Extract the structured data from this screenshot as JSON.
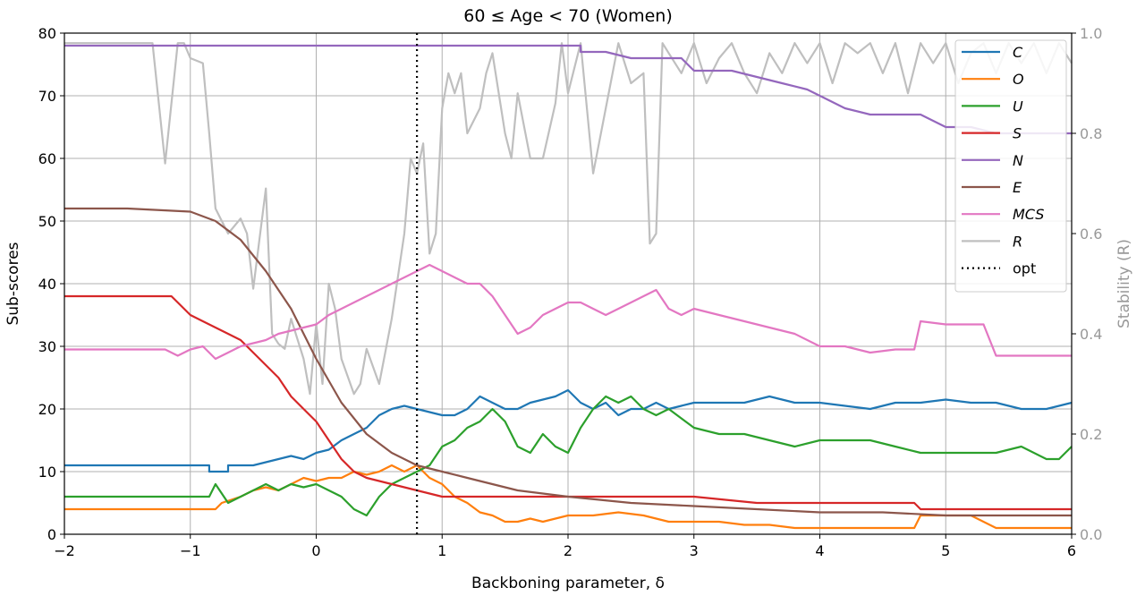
{
  "chart_data": {
    "type": "line",
    "title": "60 ≤ Age < 70 (Women)",
    "xlabel": "Backboning parameter, δ",
    "ylabel": "Sub-scores",
    "ylabel_right": "Stability (R)",
    "xlim": [
      -2,
      6
    ],
    "ylim": [
      0,
      80
    ],
    "ylim_right": [
      0,
      1.0
    ],
    "x_ticks": [
      -2,
      -1,
      0,
      1,
      2,
      3,
      4,
      5,
      6
    ],
    "x_tick_labels": [
      "−2",
      "−1",
      "0",
      "1",
      "2",
      "3",
      "4",
      "5",
      "6"
    ],
    "y_ticks": [
      0,
      10,
      20,
      30,
      40,
      50,
      60,
      70,
      80
    ],
    "y_tick_labels": [
      "0",
      "10",
      "20",
      "30",
      "40",
      "50",
      "60",
      "70",
      "80"
    ],
    "y_right_ticks": [
      0,
      0.2,
      0.4,
      0.6,
      0.8,
      1.0
    ],
    "y_right_tick_labels": [
      "0.0",
      "0.2",
      "0.4",
      "0.6",
      "0.8",
      "1.0"
    ],
    "grid": true,
    "legend_position": "top-right",
    "vline": {
      "name": "opt",
      "x": 0.8,
      "color": "#000000",
      "style": "dotted"
    },
    "series": [
      {
        "name": "C",
        "color": "#1f77b4",
        "axis": "left",
        "x": [
          -2,
          -0.85,
          -0.85,
          -0.7,
          -0.7,
          -0.5,
          -0.4,
          -0.3,
          -0.2,
          -0.1,
          0,
          0.1,
          0.2,
          0.3,
          0.4,
          0.5,
          0.6,
          0.7,
          0.8,
          0.9,
          1.0,
          1.1,
          1.2,
          1.3,
          1.4,
          1.5,
          1.6,
          1.7,
          1.8,
          1.9,
          2.0,
          2.1,
          2.2,
          2.3,
          2.4,
          2.5,
          2.6,
          2.7,
          2.8,
          2.9,
          3.0,
          3.2,
          3.4,
          3.6,
          3.8,
          4.0,
          4.2,
          4.4,
          4.6,
          4.8,
          5.0,
          5.2,
          5.4,
          5.6,
          5.8,
          6.0
        ],
        "y": [
          11,
          11,
          10,
          10,
          11,
          11,
          11.5,
          12,
          12.5,
          12,
          13,
          13.5,
          15,
          16,
          17,
          19,
          20,
          20.5,
          20,
          19.5,
          19,
          19,
          20,
          22,
          21,
          20,
          20,
          21,
          21.5,
          22,
          23,
          21,
          20,
          21,
          19,
          20,
          20,
          21,
          20,
          20.5,
          21,
          21,
          21,
          22,
          21,
          21,
          20.5,
          20,
          21,
          21,
          21.5,
          21,
          21,
          20,
          20,
          21
        ]
      },
      {
        "name": "O",
        "color": "#ff7f0e",
        "axis": "left",
        "x": [
          -2,
          -0.8,
          -0.75,
          -0.6,
          -0.5,
          -0.4,
          -0.3,
          -0.2,
          -0.1,
          0,
          0.1,
          0.2,
          0.3,
          0.4,
          0.5,
          0.6,
          0.7,
          0.8,
          0.9,
          1.0,
          1.1,
          1.2,
          1.3,
          1.4,
          1.5,
          1.6,
          1.7,
          1.8,
          1.9,
          2.0,
          2.2,
          2.4,
          2.6,
          2.8,
          3.0,
          3.2,
          3.4,
          3.6,
          3.8,
          4.0,
          4.2,
          4.4,
          4.6,
          4.75,
          4.8,
          5.0,
          5.2,
          5.4,
          5.6,
          5.8,
          6.0
        ],
        "y": [
          4,
          4,
          5,
          6,
          7,
          7.5,
          7,
          8,
          9,
          8.5,
          9,
          9,
          10,
          9.5,
          10,
          11,
          10,
          11,
          9,
          8,
          6,
          5,
          3.5,
          3,
          2,
          2,
          2.5,
          2,
          2.5,
          3,
          3,
          3.5,
          3,
          2,
          2,
          2,
          1.5,
          1.5,
          1,
          1,
          1,
          1,
          1,
          1,
          3,
          3,
          3,
          1,
          1,
          1,
          1
        ]
      },
      {
        "name": "U",
        "color": "#2ca02c",
        "axis": "left",
        "x": [
          -2,
          -0.85,
          -0.8,
          -0.7,
          -0.6,
          -0.5,
          -0.4,
          -0.3,
          -0.2,
          -0.1,
          0,
          0.1,
          0.2,
          0.3,
          0.4,
          0.5,
          0.6,
          0.7,
          0.8,
          0.9,
          1.0,
          1.1,
          1.2,
          1.3,
          1.4,
          1.5,
          1.6,
          1.7,
          1.8,
          1.9,
          2.0,
          2.1,
          2.2,
          2.3,
          2.4,
          2.5,
          2.6,
          2.7,
          2.8,
          3.0,
          3.2,
          3.4,
          3.6,
          3.8,
          4.0,
          4.2,
          4.4,
          4.6,
          4.8,
          5.0,
          5.2,
          5.4,
          5.6,
          5.8,
          5.9,
          6.0
        ],
        "y": [
          6,
          6,
          8,
          5,
          6,
          7,
          8,
          7,
          8,
          7.5,
          8,
          7,
          6,
          4,
          3,
          6,
          8,
          9,
          10,
          11,
          14,
          15,
          17,
          18,
          20,
          18,
          14,
          13,
          16,
          14,
          13,
          17,
          20,
          22,
          21,
          22,
          20,
          19,
          20,
          17,
          16,
          16,
          15,
          14,
          15,
          15,
          15,
          14,
          13,
          13,
          13,
          13,
          14,
          12,
          12,
          14
        ]
      },
      {
        "name": "S",
        "color": "#d62728",
        "axis": "left",
        "x": [
          -2,
          -1.15,
          -1.1,
          -1.0,
          -0.9,
          -0.8,
          -0.7,
          -0.6,
          -0.5,
          -0.4,
          -0.3,
          -0.2,
          -0.1,
          0,
          0.1,
          0.2,
          0.3,
          0.4,
          0.5,
          0.6,
          0.7,
          0.8,
          0.9,
          1.0,
          1.5,
          2.0,
          2.5,
          3.0,
          3.5,
          4.0,
          4.5,
          4.75,
          4.8,
          5.0,
          5.5,
          6.0
        ],
        "y": [
          38,
          38,
          37,
          35,
          34,
          33,
          32,
          31,
          29,
          27,
          25,
          22,
          20,
          18,
          15,
          12,
          10,
          9,
          8.5,
          8,
          7.5,
          7,
          6.5,
          6,
          6,
          6,
          6,
          6,
          5,
          5,
          5,
          5,
          4,
          4,
          4,
          4
        ]
      },
      {
        "name": "N",
        "color": "#9467bd",
        "axis": "left",
        "x": [
          -2,
          2.1,
          2.1,
          2.3,
          2.5,
          2.7,
          2.9,
          3.0,
          3.3,
          3.5,
          3.7,
          3.9,
          4.0,
          4.2,
          4.4,
          4.6,
          4.8,
          5.0,
          5.2,
          5.4,
          5.6,
          5.8,
          6.0
        ],
        "y": [
          78,
          78,
          77,
          77,
          76,
          76,
          76,
          74,
          74,
          73,
          72,
          71,
          70,
          68,
          67,
          67,
          67,
          65,
          65,
          64,
          64,
          64,
          64
        ]
      },
      {
        "name": "E",
        "color": "#8c564b",
        "axis": "left",
        "x": [
          -2,
          -1.5,
          -1.0,
          -0.8,
          -0.6,
          -0.4,
          -0.2,
          0,
          0.2,
          0.4,
          0.6,
          0.8,
          1.0,
          1.2,
          1.4,
          1.6,
          1.8,
          2.0,
          2.5,
          3.0,
          3.5,
          4.0,
          4.5,
          5.0,
          5.5,
          6.0
        ],
        "y": [
          52,
          52,
          51.5,
          50,
          47,
          42,
          36,
          28,
          21,
          16,
          13,
          11,
          10,
          9,
          8,
          7,
          6.5,
          6,
          5,
          4.5,
          4,
          3.5,
          3.5,
          3,
          3,
          3
        ]
      },
      {
        "name": "MCS",
        "color": "#e377c2",
        "axis": "left",
        "x": [
          -2,
          -1.2,
          -1.1,
          -1.0,
          -0.9,
          -0.8,
          -0.7,
          -0.6,
          -0.5,
          -0.4,
          -0.3,
          -0.2,
          -0.1,
          0,
          0.1,
          0.2,
          0.3,
          0.4,
          0.5,
          0.6,
          0.7,
          0.8,
          0.9,
          1.0,
          1.1,
          1.2,
          1.3,
          1.4,
          1.5,
          1.6,
          1.7,
          1.8,
          1.9,
          2.0,
          2.1,
          2.2,
          2.3,
          2.4,
          2.5,
          2.6,
          2.7,
          2.8,
          2.9,
          3.0,
          3.2,
          3.4,
          3.6,
          3.8,
          4.0,
          4.2,
          4.4,
          4.6,
          4.7,
          4.75,
          4.8,
          5.0,
          5.3,
          5.4,
          5.5,
          6.0
        ],
        "y": [
          29.5,
          29.5,
          28.5,
          29.5,
          30,
          28,
          29,
          30,
          30.5,
          31,
          32,
          32.5,
          33,
          33.5,
          35,
          36,
          37,
          38,
          39,
          40,
          41,
          42,
          43,
          42,
          41,
          40,
          40,
          38,
          35,
          32,
          33,
          35,
          36,
          37,
          37,
          36,
          35,
          36,
          37,
          38,
          39,
          36,
          35,
          36,
          35,
          34,
          33,
          32,
          30,
          30,
          29,
          29.5,
          29.5,
          29.5,
          34,
          33.5,
          33.5,
          28.5,
          28.5,
          28.5
        ]
      },
      {
        "name": "R",
        "color": "#bfbfbf",
        "axis": "right",
        "x": [
          -2,
          -1.3,
          -1.2,
          -1.1,
          -1.05,
          -1.0,
          -0.9,
          -0.85,
          -0.8,
          -0.7,
          -0.6,
          -0.55,
          -0.5,
          -0.4,
          -0.35,
          -0.3,
          -0.25,
          -0.2,
          -0.1,
          -0.05,
          0,
          0.05,
          0.1,
          0.15,
          0.2,
          0.3,
          0.35,
          0.4,
          0.5,
          0.6,
          0.7,
          0.75,
          0.8,
          0.85,
          0.9,
          0.95,
          1.0,
          1.05,
          1.1,
          1.15,
          1.2,
          1.3,
          1.35,
          1.4,
          1.5,
          1.55,
          1.6,
          1.7,
          1.8,
          1.9,
          1.95,
          2.0,
          2.1,
          2.2,
          2.3,
          2.4,
          2.5,
          2.6,
          2.65,
          2.7,
          2.75,
          2.8,
          2.9,
          3.0,
          3.1,
          3.2,
          3.3,
          3.4,
          3.5,
          3.6,
          3.7,
          3.8,
          3.9,
          4.0,
          4.1,
          4.2,
          4.3,
          4.4,
          4.5,
          4.6,
          4.7,
          4.8,
          4.9,
          5.0,
          5.1,
          5.2,
          5.3,
          5.4,
          5.5,
          5.6,
          5.7,
          5.8,
          5.9,
          6.0
        ],
        "y": [
          0.98,
          0.98,
          0.74,
          0.98,
          0.98,
          0.95,
          0.94,
          0.8,
          0.65,
          0.6,
          0.63,
          0.6,
          0.49,
          0.69,
          0.4,
          0.38,
          0.37,
          0.43,
          0.35,
          0.28,
          0.42,
          0.3,
          0.5,
          0.45,
          0.35,
          0.28,
          0.3,
          0.37,
          0.3,
          0.43,
          0.6,
          0.75,
          0.72,
          0.78,
          0.56,
          0.6,
          0.85,
          0.92,
          0.88,
          0.92,
          0.8,
          0.85,
          0.92,
          0.96,
          0.8,
          0.75,
          0.88,
          0.75,
          0.75,
          0.86,
          0.98,
          0.88,
          0.98,
          0.72,
          0.85,
          0.98,
          0.9,
          0.92,
          0.58,
          0.6,
          0.98,
          0.96,
          0.92,
          0.98,
          0.9,
          0.95,
          0.98,
          0.92,
          0.88,
          0.96,
          0.92,
          0.98,
          0.94,
          0.98,
          0.9,
          0.98,
          0.96,
          0.98,
          0.92,
          0.98,
          0.88,
          0.98,
          0.94,
          0.98,
          0.9,
          0.96,
          0.98,
          0.92,
          0.98,
          0.94,
          0.98,
          0.92,
          0.98,
          0.94
        ]
      }
    ]
  }
}
